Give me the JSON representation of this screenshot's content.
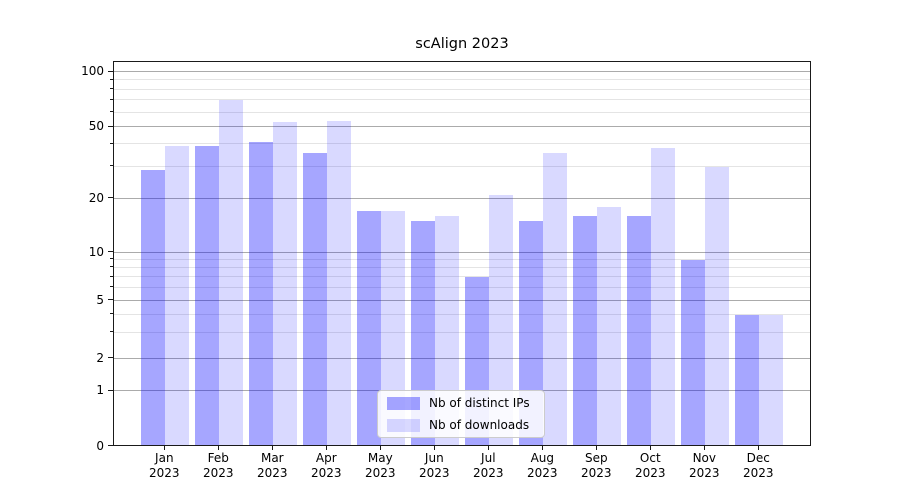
{
  "chart_data": {
    "type": "bar",
    "title": "scAlign 2023",
    "categories": [
      "Jan",
      "Feb",
      "Mar",
      "Apr",
      "May",
      "Jun",
      "Jul",
      "Aug",
      "Sep",
      "Oct",
      "Nov",
      "Dec"
    ],
    "year": "2023",
    "series": [
      {
        "name": "Nb of distinct IPs",
        "color": "rgba(0,0,255,0.35)",
        "values": [
          29,
          39,
          41,
          36,
          17,
          15,
          7,
          15,
          16,
          16,
          9,
          4
        ]
      },
      {
        "name": "Nb of downloads",
        "color": "rgba(0,0,255,0.15)",
        "values": [
          39,
          70,
          53,
          54,
          17,
          16,
          21,
          36,
          18,
          38,
          30,
          4
        ]
      }
    ],
    "yscale": "asinh",
    "ylim": [
      0,
      113
    ],
    "yticks_major": [
      0,
      1,
      2,
      5,
      10,
      20,
      50,
      100
    ],
    "yticks_minor": [
      3,
      4,
      6,
      7,
      8,
      9,
      30,
      40,
      60,
      70,
      80,
      90
    ],
    "grid": "both",
    "legend_position": "lower center"
  }
}
